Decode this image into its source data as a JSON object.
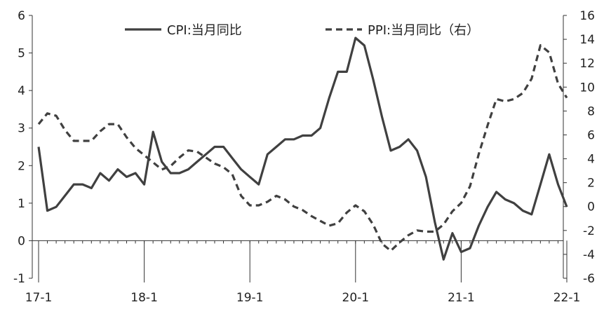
{
  "chart_data": {
    "type": "line",
    "title": "",
    "xlabel": "",
    "ylabel": "",
    "x_tick_labels": [
      "17-1",
      "18-1",
      "19-1",
      "20-1",
      "21-1",
      "22-1"
    ],
    "left_axis": {
      "ylim": [
        -1,
        6
      ],
      "ticks": [
        "-1",
        "0",
        "1",
        "2",
        "3",
        "4",
        "5",
        "6"
      ]
    },
    "right_axis": {
      "ylim": [
        -6,
        16
      ],
      "ticks": [
        "-6",
        "-4",
        "-2",
        "0",
        "2",
        "4",
        "6",
        "8",
        "10",
        "12",
        "14",
        "16"
      ]
    },
    "grid": false,
    "legend_position": "top",
    "x": [
      "2017-01",
      "2017-02",
      "2017-03",
      "2017-04",
      "2017-05",
      "2017-06",
      "2017-07",
      "2017-08",
      "2017-09",
      "2017-10",
      "2017-11",
      "2017-12",
      "2018-01",
      "2018-02",
      "2018-03",
      "2018-04",
      "2018-05",
      "2018-06",
      "2018-07",
      "2018-08",
      "2018-09",
      "2018-10",
      "2018-11",
      "2018-12",
      "2019-01",
      "2019-02",
      "2019-03",
      "2019-04",
      "2019-05",
      "2019-06",
      "2019-07",
      "2019-08",
      "2019-09",
      "2019-10",
      "2019-11",
      "2019-12",
      "2020-01",
      "2020-02",
      "2020-03",
      "2020-04",
      "2020-05",
      "2020-06",
      "2020-07",
      "2020-08",
      "2020-09",
      "2020-10",
      "2020-11",
      "2020-12",
      "2021-01",
      "2021-02",
      "2021-03",
      "2021-04",
      "2021-05",
      "2021-06",
      "2021-07",
      "2021-08",
      "2021-09",
      "2021-10",
      "2021-11",
      "2021-12",
      "2022-01"
    ],
    "series": [
      {
        "name": "CPI:当月同比",
        "axis": "left",
        "style": "solid",
        "color": "#404040",
        "values": [
          2.5,
          0.8,
          0.9,
          1.2,
          1.5,
          1.5,
          1.4,
          1.8,
          1.6,
          1.9,
          1.7,
          1.8,
          1.5,
          2.9,
          2.1,
          1.8,
          1.8,
          1.9,
          2.1,
          2.3,
          2.5,
          2.5,
          2.2,
          1.9,
          1.7,
          1.5,
          2.3,
          2.5,
          2.7,
          2.7,
          2.8,
          2.8,
          3.0,
          3.8,
          4.5,
          4.5,
          5.4,
          5.2,
          4.3,
          3.3,
          2.4,
          2.5,
          2.7,
          2.4,
          1.7,
          0.5,
          -0.5,
          0.2,
          -0.3,
          -0.2,
          0.4,
          0.9,
          1.3,
          1.1,
          1.0,
          0.8,
          0.7,
          1.5,
          2.3,
          1.5,
          0.9
        ]
      },
      {
        "name": "PPI:当月同比（右）",
        "axis": "right",
        "style": "dashed",
        "color": "#404040",
        "values": [
          6.9,
          7.8,
          7.6,
          6.4,
          5.5,
          5.5,
          5.5,
          6.3,
          6.9,
          6.9,
          5.8,
          4.9,
          4.3,
          3.7,
          3.1,
          3.4,
          4.1,
          4.7,
          4.6,
          4.1,
          3.6,
          3.3,
          2.7,
          0.9,
          0.1,
          0.1,
          0.4,
          0.9,
          0.6,
          0.0,
          -0.3,
          -0.8,
          -1.2,
          -1.6,
          -1.4,
          -0.5,
          0.1,
          -0.4,
          -1.5,
          -3.1,
          -3.7,
          -3.0,
          -2.4,
          -2.0,
          -2.1,
          -2.1,
          -1.5,
          -0.4,
          0.3,
          1.7,
          4.4,
          6.8,
          9.0,
          8.8,
          9.0,
          9.5,
          10.7,
          13.5,
          12.9,
          10.3,
          9.1
        ]
      }
    ]
  }
}
